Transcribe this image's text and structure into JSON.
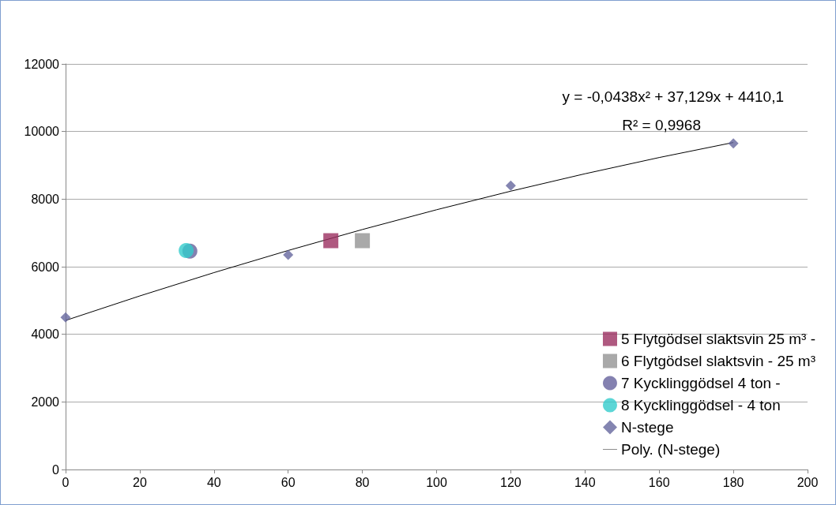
{
  "chart_data": {
    "type": "scatter",
    "annotations": [
      "y = -0,0438x² + 37,129x + 4410,1",
      "R² = 0,9968"
    ],
    "xlim": [
      0,
      200
    ],
    "xticks": [
      0,
      20,
      40,
      60,
      80,
      100,
      120,
      140,
      160,
      180,
      200
    ],
    "ylim": [
      0,
      12000
    ],
    "yticks": [
      0,
      2000,
      4000,
      6000,
      8000,
      10000,
      12000
    ],
    "grid": "y",
    "legend": "bottom right",
    "series": [
      {
        "name": "5 Flytgödsel slaktsvin 25 m³ -",
        "color": "#9b3060",
        "marker": "square",
        "x": [
          71.5
        ],
        "values": [
          6770
        ]
      },
      {
        "name": "6 Flytgödsel slaktsvin - 25 m³",
        "color": "#939393",
        "marker": "square",
        "x": [
          80
        ],
        "values": [
          6770
        ]
      },
      {
        "name": "7 Kycklinggödsel 4 ton -",
        "color": "#65629c",
        "marker": "circle",
        "x": [
          33.5
        ],
        "values": [
          6460
        ]
      },
      {
        "name": "8 Kycklinggödsel - 4 ton",
        "color": "#33cccc",
        "marker": "circle",
        "x": [
          32.5
        ],
        "values": [
          6480
        ]
      },
      {
        "name": "N-stege",
        "color": "#65679e",
        "marker": "diamond",
        "x": [
          0,
          60,
          120,
          180
        ],
        "values": [
          4500,
          6350,
          8400,
          9650
        ]
      },
      {
        "name": "Poly. (N-stege)",
        "type": "line",
        "color": "#000000",
        "marker": "none",
        "line_style": "solid",
        "x": [
          0,
          20,
          40,
          60,
          80,
          100,
          120,
          140,
          160,
          180
        ],
        "values": [
          4410,
          5135,
          5825,
          6480,
          7100,
          7685,
          8235,
          8750,
          9230,
          9675
        ]
      }
    ]
  }
}
